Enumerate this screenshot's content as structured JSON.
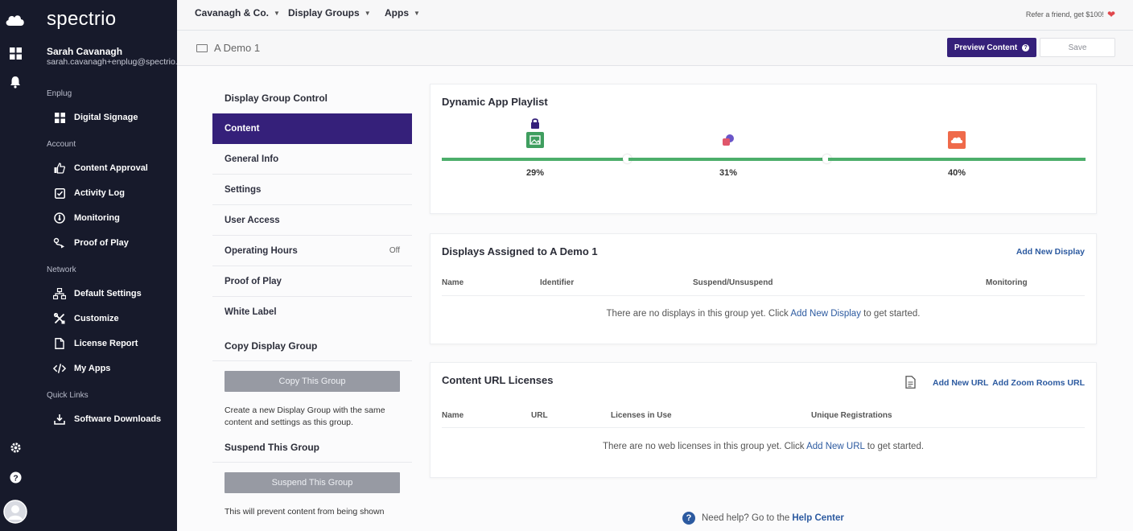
{
  "sidebar": {
    "brand": "spectrio",
    "user_name": "Sarah Cavanagh",
    "user_email": "sarah.cavanagh+enplug@spectrio.com",
    "sections": [
      {
        "label": "Enplug",
        "items": [
          {
            "label": "Digital Signage",
            "icon": "grid-icon"
          }
        ]
      },
      {
        "label": "Account",
        "items": [
          {
            "label": "Content Approval",
            "icon": "thumbs-up-icon"
          },
          {
            "label": "Activity Log",
            "icon": "checkbox-icon"
          },
          {
            "label": "Monitoring",
            "icon": "gauge-icon"
          },
          {
            "label": "Proof of Play",
            "icon": "play-route-icon"
          }
        ]
      },
      {
        "label": "Network",
        "items": [
          {
            "label": "Default Settings",
            "icon": "network-icon"
          },
          {
            "label": "Customize",
            "icon": "tools-icon"
          },
          {
            "label": "License Report",
            "icon": "document-icon"
          },
          {
            "label": "My Apps",
            "icon": "code-icon"
          }
        ]
      },
      {
        "label": "Quick Links",
        "items": [
          {
            "label": "Software Downloads",
            "icon": "download-icon"
          }
        ]
      }
    ]
  },
  "topbar": {
    "nav": [
      "Cavanagh & Co.",
      "Display Groups",
      "Apps"
    ],
    "refer": "Refer a friend, get $100!"
  },
  "subbar": {
    "group_name": "A Demo 1",
    "preview_label": "Preview Content",
    "save_label": "Save"
  },
  "menu": {
    "head": "Display Group Control",
    "items": [
      {
        "label": "Content",
        "value": ""
      },
      {
        "label": "General Info",
        "value": ""
      },
      {
        "label": "Settings",
        "value": ""
      },
      {
        "label": "User Access",
        "value": ""
      },
      {
        "label": "Operating Hours",
        "value": "Off"
      },
      {
        "label": "Proof of Play",
        "value": ""
      },
      {
        "label": "White Label",
        "value": ""
      }
    ],
    "copy_title": "Copy Display Group",
    "copy_button": "Copy This Group",
    "copy_desc": "Create a new Display Group with the same content and settings as this group.",
    "suspend_title": "Suspend This Group",
    "suspend_button": "Suspend This Group",
    "suspend_desc": "This will prevent content from being shown"
  },
  "playlist": {
    "title": "Dynamic App Playlist",
    "segments": [
      {
        "percent": 29,
        "label": "29%",
        "icon": "image-app-icon",
        "locked": true,
        "color": "#3f9e5f"
      },
      {
        "percent": 31,
        "label": "31%",
        "icon": "social-app-icon",
        "locked": false,
        "color": "#e0566b"
      },
      {
        "percent": 40,
        "label": "40%",
        "icon": "cloud-app-icon",
        "locked": false,
        "color": "#ef6a4a"
      }
    ]
  },
  "displays": {
    "title": "Displays Assigned to A Demo 1",
    "action": "Add New Display",
    "columns": [
      "Name",
      "Identifier",
      "Suspend/Unsuspend",
      "Monitoring"
    ],
    "empty_pre": "There are no displays in this group yet. Click ",
    "empty_link": "Add New Display",
    "empty_post": " to get started."
  },
  "licenses": {
    "title": "Content URL Licenses",
    "action1": "Add New URL",
    "action2": "Add Zoom Rooms URL",
    "columns": [
      "Name",
      "URL",
      "Licenses in Use",
      "Unique Registrations"
    ],
    "empty_pre": "There are no web licenses in this group yet. Click ",
    "empty_link": "Add New URL",
    "empty_post": " to get started."
  },
  "help": {
    "pre": "Need help? Go to the ",
    "link": "Help Center"
  },
  "colors": {
    "accent": "#35207a",
    "sidebar": "#171a2b",
    "track": "#4cae6b",
    "link": "#2c5aa0"
  }
}
